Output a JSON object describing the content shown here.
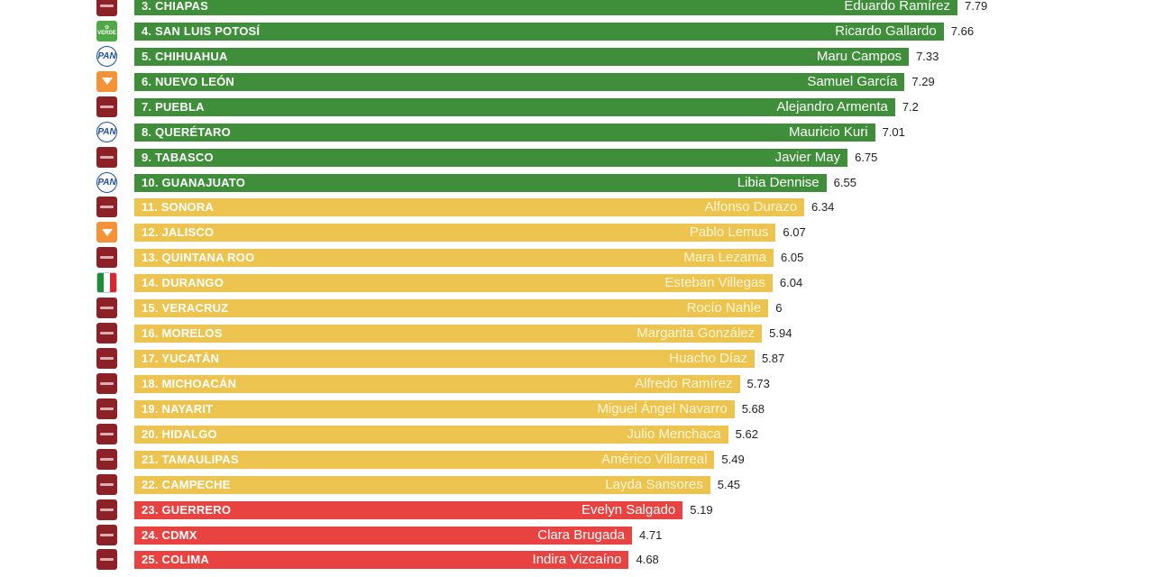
{
  "chart_data": {
    "type": "bar",
    "orientation": "horizontal",
    "title": "",
    "xlabel": "",
    "ylabel": "",
    "xlim": [
      0,
      10
    ],
    "series": [
      {
        "rank": "3.",
        "state": "CHIAPAS",
        "governor": "Eduardo Ramírez",
        "value": 7.79,
        "value_label": "7.79",
        "party": "morena",
        "color": "#3f8f3a"
      },
      {
        "rank": "4.",
        "state": "SAN LUIS POTOSÍ",
        "governor": "Ricardo Gallardo",
        "value": 7.66,
        "value_label": "7.66",
        "party": "verde",
        "color": "#3f8f3a"
      },
      {
        "rank": "5.",
        "state": "CHIHUAHUA",
        "governor": "Maru Campos",
        "value": 7.33,
        "value_label": "7.33",
        "party": "pan",
        "color": "#3f8f3a"
      },
      {
        "rank": "6.",
        "state": "NUEVO LEÓN",
        "governor": "Samuel García",
        "value": 7.29,
        "value_label": "7.29",
        "party": "mc",
        "color": "#3f8f3a"
      },
      {
        "rank": "7.",
        "state": "PUEBLA",
        "governor": "Alejandro Armenta",
        "value": 7.2,
        "value_label": "7.2",
        "party": "morena",
        "color": "#3f8f3a"
      },
      {
        "rank": "8.",
        "state": "QUERÉTARO",
        "governor": "Mauricio Kuri",
        "value": 7.01,
        "value_label": "7.01",
        "party": "pan",
        "color": "#3f8f3a"
      },
      {
        "rank": "9.",
        "state": "TABASCO",
        "governor": "Javier May",
        "value": 6.75,
        "value_label": "6.75",
        "party": "morena",
        "color": "#3f8f3a"
      },
      {
        "rank": "10.",
        "state": "GUANAJUATO",
        "governor": "Libia Dennise",
        "value": 6.55,
        "value_label": "6.55",
        "party": "pan",
        "color": "#3f8f3a"
      },
      {
        "rank": "11.",
        "state": "SONORA",
        "governor": "Alfonso Durazo",
        "value": 6.34,
        "value_label": "6.34",
        "party": "morena",
        "color": "#edc44f"
      },
      {
        "rank": "12.",
        "state": "JALISCO",
        "governor": "Pablo Lemus",
        "value": 6.07,
        "value_label": "6.07",
        "party": "mc",
        "color": "#edc44f"
      },
      {
        "rank": "13.",
        "state": "QUINTANA ROO",
        "governor": "Mara Lezama",
        "value": 6.05,
        "value_label": "6.05",
        "party": "morena",
        "color": "#edc44f"
      },
      {
        "rank": "14.",
        "state": "DURANGO",
        "governor": "Esteban Villegas",
        "value": 6.04,
        "value_label": "6.04",
        "party": "pri",
        "color": "#edc44f"
      },
      {
        "rank": "15.",
        "state": "VERACRUZ",
        "governor": "Rocío Nahle",
        "value": 6,
        "value_label": "6",
        "party": "morena",
        "color": "#edc44f"
      },
      {
        "rank": "16.",
        "state": "MORELOS",
        "governor": "Margarita González",
        "value": 5.94,
        "value_label": "5.94",
        "party": "morena",
        "color": "#edc44f"
      },
      {
        "rank": "17.",
        "state": "YUCATÁN",
        "governor": "Huacho Díaz",
        "value": 5.87,
        "value_label": "5.87",
        "party": "morena",
        "color": "#edc44f"
      },
      {
        "rank": "18.",
        "state": "MICHOACÁN",
        "governor": "Alfredo Ramírez",
        "value": 5.73,
        "value_label": "5.73",
        "party": "morena",
        "color": "#edc44f"
      },
      {
        "rank": "19.",
        "state": "NAYARIT",
        "governor": "Miguel Ángel Navarro",
        "value": 5.68,
        "value_label": "5.68",
        "party": "morena",
        "color": "#edc44f"
      },
      {
        "rank": "20.",
        "state": "HIDALGO",
        "governor": "Julio Menchaca",
        "value": 5.62,
        "value_label": "5.62",
        "party": "morena",
        "color": "#edc44f"
      },
      {
        "rank": "21.",
        "state": "TAMAULIPAS",
        "governor": "Américo Villarreal",
        "value": 5.49,
        "value_label": "5.49",
        "party": "morena",
        "color": "#edc44f"
      },
      {
        "rank": "22.",
        "state": "CAMPECHE",
        "governor": "Layda Sansores",
        "value": 5.45,
        "value_label": "5.45",
        "party": "morena",
        "color": "#edc44f"
      },
      {
        "rank": "23.",
        "state": "GUERRERO",
        "governor": "Evelyn Salgado",
        "value": 5.19,
        "value_label": "5.19",
        "party": "morena",
        "color": "#e84341"
      },
      {
        "rank": "24.",
        "state": "CDMX",
        "governor": "Clara Brugada",
        "value": 4.71,
        "value_label": "4.71",
        "party": "morena",
        "color": "#e84341"
      },
      {
        "rank": "25.",
        "state": "COLIMA",
        "governor": "Indira Vizcaíno",
        "value": 4.68,
        "value_label": "4.68",
        "party": "morena",
        "color": "#e84341"
      }
    ]
  },
  "party_logos": {
    "morena": "morena-logo-icon",
    "verde": "verde-logo-icon",
    "pan": "pan-logo-icon",
    "mc": "movimiento-ciudadano-logo-icon",
    "pri": "pri-logo-icon"
  },
  "logo_text": {
    "verde": "VERDE",
    "pan": "PAN"
  }
}
